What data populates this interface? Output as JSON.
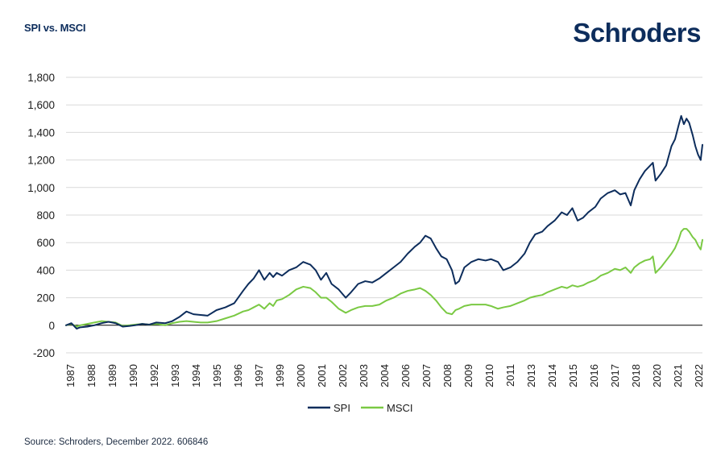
{
  "header": {
    "title": "SPI vs. MSCI",
    "logo_text": "Schroders"
  },
  "footer": {
    "source": "Source: Schroders, December 2022. 606846"
  },
  "colors": {
    "spi": "#0d2d5c",
    "msci": "#7ac943",
    "grid": "#d9d9d9",
    "axis": "#000000"
  },
  "chart_data": {
    "type": "line",
    "title": "SPI vs. MSCI",
    "xlabel": "",
    "ylabel": "",
    "ylim": [
      -200,
      1800
    ],
    "yticks": [
      -200,
      0,
      200,
      400,
      600,
      800,
      1000,
      1200,
      1400,
      1600,
      1800
    ],
    "ytick_labels": [
      "-200",
      "0",
      "200",
      "400",
      "600",
      "800",
      "1,000",
      "1,200",
      "1,400",
      "1,600",
      "1,800"
    ],
    "xlim": [
      1987.0,
      2022.95
    ],
    "xtick_labels": [
      "1987",
      "1988",
      "1989",
      "1990",
      "1992",
      "1993",
      "1994",
      "1995",
      "1996",
      "1997",
      "1999",
      "2000",
      "2001",
      "2002",
      "2003",
      "2004",
      "2006",
      "2007",
      "2008",
      "2009",
      "2010",
      "2011",
      "2013",
      "2014",
      "2015",
      "2016",
      "2017",
      "2018",
      "2020",
      "2021",
      "2022"
    ],
    "grid": true,
    "legend": "bottom-center",
    "series": [
      {
        "name": "SPI",
        "color": "#0d2d5c",
        "x": [
          1987.0,
          1987.3,
          1987.6,
          1987.8,
          1988.2,
          1988.6,
          1989.0,
          1989.4,
          1989.8,
          1990.2,
          1990.6,
          1990.9,
          1991.3,
          1991.7,
          1992.1,
          1992.6,
          1993.0,
          1993.4,
          1993.8,
          1994.2,
          1994.6,
          1995.0,
          1995.5,
          1996.0,
          1996.5,
          1997.0,
          1997.3,
          1997.6,
          1997.9,
          1998.2,
          1998.5,
          1998.7,
          1998.9,
          1999.2,
          1999.6,
          2000.0,
          2000.4,
          2000.8,
          2001.1,
          2001.4,
          2001.7,
          2002.0,
          2002.4,
          2002.8,
          2003.1,
          2003.5,
          2003.9,
          2004.3,
          2004.7,
          2005.1,
          2005.5,
          2005.9,
          2006.3,
          2006.7,
          2007.0,
          2007.3,
          2007.6,
          2007.9,
          2008.2,
          2008.5,
          2008.8,
          2009.0,
          2009.2,
          2009.5,
          2009.9,
          2010.3,
          2010.7,
          2011.0,
          2011.4,
          2011.7,
          2012.1,
          2012.5,
          2012.9,
          2013.2,
          2013.5,
          2013.9,
          2014.2,
          2014.6,
          2015.0,
          2015.3,
          2015.6,
          2015.9,
          2016.2,
          2016.5,
          2016.9,
          2017.2,
          2017.6,
          2018.0,
          2018.3,
          2018.6,
          2018.9,
          2019.1,
          2019.4,
          2019.7,
          2020.0,
          2020.15,
          2020.3,
          2020.6,
          2020.9,
          2021.2,
          2021.4,
          2021.6,
          2021.75,
          2021.9,
          2022.05,
          2022.2,
          2022.4,
          2022.55,
          2022.7,
          2022.85,
          2022.95
        ],
        "values": [
          0,
          15,
          -25,
          -15,
          -10,
          0,
          15,
          25,
          15,
          -10,
          -5,
          0,
          10,
          5,
          20,
          15,
          30,
          60,
          100,
          80,
          75,
          70,
          110,
          130,
          160,
          250,
          300,
          340,
          400,
          330,
          380,
          350,
          380,
          360,
          400,
          420,
          460,
          440,
          400,
          330,
          380,
          300,
          260,
          200,
          240,
          300,
          320,
          310,
          340,
          380,
          420,
          460,
          520,
          570,
          600,
          650,
          630,
          560,
          500,
          480,
          400,
          300,
          320,
          420,
          460,
          480,
          470,
          480,
          460,
          400,
          420,
          460,
          520,
          600,
          660,
          680,
          720,
          760,
          820,
          800,
          850,
          760,
          780,
          820,
          860,
          920,
          960,
          980,
          950,
          960,
          870,
          980,
          1060,
          1120,
          1160,
          1180,
          1050,
          1100,
          1160,
          1300,
          1350,
          1450,
          1520,
          1460,
          1500,
          1470,
          1380,
          1300,
          1240,
          1200,
          1310
        ]
      },
      {
        "name": "MSCI",
        "color": "#7ac943",
        "x": [
          1987.0,
          1987.3,
          1987.6,
          1987.8,
          1988.2,
          1988.6,
          1989.0,
          1989.4,
          1989.8,
          1990.2,
          1990.6,
          1990.9,
          1991.3,
          1991.7,
          1992.1,
          1992.6,
          1993.0,
          1993.4,
          1993.8,
          1994.2,
          1994.6,
          1995.0,
          1995.5,
          1996.0,
          1996.5,
          1997.0,
          1997.3,
          1997.6,
          1997.9,
          1998.2,
          1998.5,
          1998.7,
          1998.9,
          1999.2,
          1999.6,
          2000.0,
          2000.4,
          2000.8,
          2001.1,
          2001.4,
          2001.7,
          2002.0,
          2002.4,
          2002.8,
          2003.1,
          2003.5,
          2003.9,
          2004.3,
          2004.7,
          2005.1,
          2005.5,
          2005.9,
          2006.3,
          2006.7,
          2007.0,
          2007.3,
          2007.6,
          2007.9,
          2008.2,
          2008.5,
          2008.8,
          2009.0,
          2009.2,
          2009.5,
          2009.9,
          2010.3,
          2010.7,
          2011.0,
          2011.4,
          2011.7,
          2012.1,
          2012.5,
          2012.9,
          2013.2,
          2013.5,
          2013.9,
          2014.2,
          2014.6,
          2015.0,
          2015.3,
          2015.6,
          2015.9,
          2016.2,
          2016.5,
          2016.9,
          2017.2,
          2017.6,
          2018.0,
          2018.3,
          2018.6,
          2018.9,
          2019.1,
          2019.4,
          2019.7,
          2020.0,
          2020.15,
          2020.3,
          2020.6,
          2020.9,
          2021.2,
          2021.4,
          2021.6,
          2021.75,
          2021.9,
          2022.05,
          2022.2,
          2022.4,
          2022.55,
          2022.7,
          2022.85,
          2022.95
        ],
        "values": [
          0,
          10,
          -10,
          0,
          10,
          20,
          30,
          25,
          20,
          -5,
          0,
          5,
          10,
          5,
          10,
          0,
          15,
          25,
          30,
          25,
          20,
          20,
          30,
          50,
          70,
          100,
          110,
          130,
          150,
          120,
          160,
          140,
          180,
          190,
          220,
          260,
          280,
          270,
          240,
          200,
          200,
          170,
          120,
          90,
          110,
          130,
          140,
          140,
          150,
          180,
          200,
          230,
          250,
          260,
          270,
          250,
          220,
          180,
          130,
          90,
          80,
          110,
          120,
          140,
          150,
          150,
          150,
          140,
          120,
          130,
          140,
          160,
          180,
          200,
          210,
          220,
          240,
          260,
          280,
          270,
          290,
          280,
          290,
          310,
          330,
          360,
          380,
          410,
          400,
          420,
          380,
          420,
          450,
          470,
          480,
          500,
          380,
          420,
          470,
          520,
          560,
          620,
          680,
          700,
          700,
          680,
          640,
          620,
          580,
          550,
          620
        ]
      }
    ]
  }
}
